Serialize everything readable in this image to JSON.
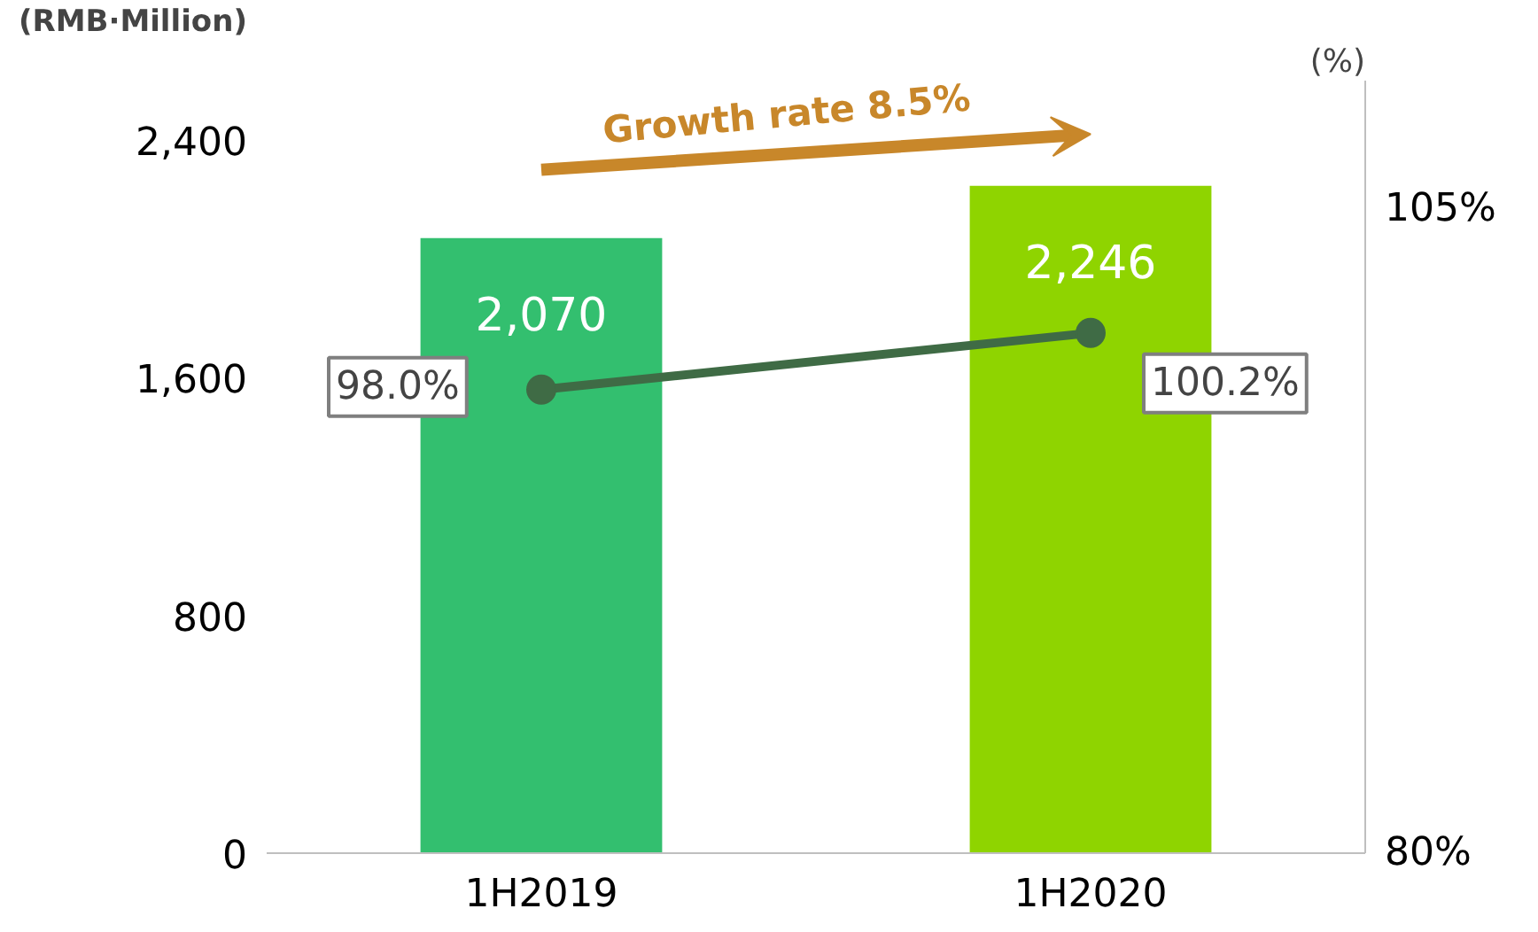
{
  "chart_data": {
    "type": "bar",
    "categories": [
      "1H2019",
      "1H2020"
    ],
    "ylabel": "(RMB·Million)",
    "y2label": "(%)",
    "ylim": [
      0,
      2600
    ],
    "yticks": [
      {
        "value": 0,
        "label": "0"
      },
      {
        "value": 800,
        "label": "800"
      },
      {
        "value": 1600,
        "label": "1,600"
      },
      {
        "value": 2400,
        "label": "2,400"
      }
    ],
    "y2lim": [
      80,
      110
    ],
    "y2ticks": [
      {
        "value": 80,
        "label": "80%"
      },
      {
        "value": 105,
        "label": "105%"
      }
    ],
    "annotations": [
      "Growth rate 8.5%"
    ],
    "grid": false,
    "marker": "circle",
    "series": [
      {
        "colors": [
          "#33bf6f",
          "#8fd400"
        ],
        "values": [
          2070,
          2246
        ],
        "value_labels": [
          "2,070",
          "2,246"
        ]
      },
      {
        "type": "line",
        "axis": "y2",
        "color": "#3f6b45",
        "values": [
          98.0,
          100.2
        ],
        "value_labels": [
          "98.0%",
          "100.2%"
        ]
      }
    ]
  }
}
